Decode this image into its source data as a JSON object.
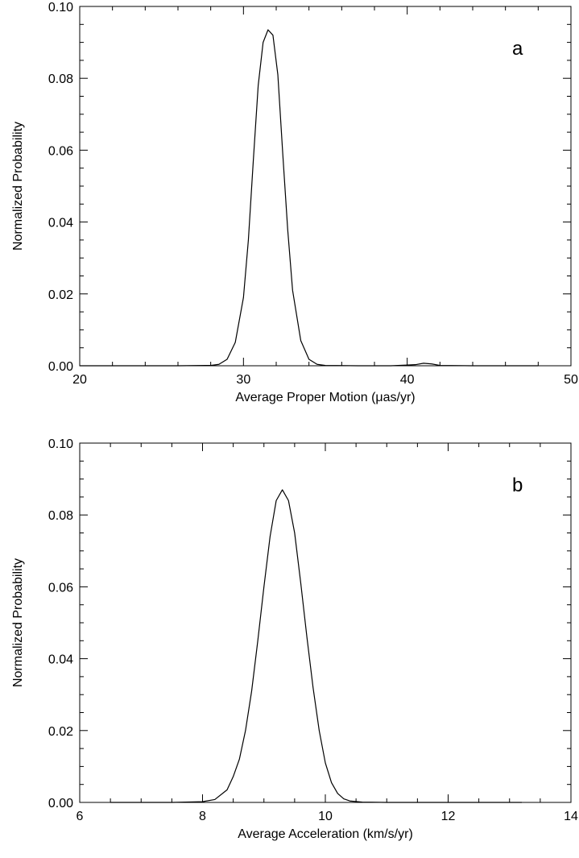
{
  "chart_data": [
    {
      "type": "line",
      "panel_label": "a",
      "xlabel": "Average Proper Motion (μas/yr)",
      "ylabel": "Normalized Probability",
      "xlim": [
        20,
        50
      ],
      "ylim": [
        0,
        0.1
      ],
      "xticks": [
        "20",
        "30",
        "40",
        "50"
      ],
      "yticks": [
        "0.00",
        "0.02",
        "0.04",
        "0.06",
        "0.08",
        "0.10"
      ],
      "grid": false,
      "series": [
        {
          "x": [
            20,
            26,
            28,
            28.5,
            29,
            29.5,
            30,
            30.3,
            30.6,
            30.9,
            31.2,
            31.5,
            31.8,
            32.1,
            32.4,
            32.7,
            33,
            33.5,
            34,
            34.5,
            35,
            37,
            39,
            40.5,
            41,
            41.5,
            42,
            44,
            46,
            48
          ],
          "y": [
            0,
            0,
            0.0001,
            0.0004,
            0.0018,
            0.0065,
            0.019,
            0.035,
            0.057,
            0.078,
            0.09,
            0.0935,
            0.092,
            0.081,
            0.059,
            0.038,
            0.021,
            0.007,
            0.0018,
            0.0004,
            0.0001,
            0,
            0,
            0.0003,
            0.0007,
            0.0005,
            0.0001,
            0,
            0,
            0
          ]
        }
      ]
    },
    {
      "type": "line",
      "panel_label": "b",
      "xlabel": "Average Acceleration (km/s/yr)",
      "ylabel": "Normalized Probability",
      "xlim": [
        6,
        14
      ],
      "ylim": [
        0,
        0.1
      ],
      "xticks": [
        "6",
        "8",
        "10",
        "12",
        "14"
      ],
      "yticks": [
        "0.00",
        "0.02",
        "0.04",
        "0.06",
        "0.08",
        "0.10"
      ],
      "grid": false,
      "series": [
        {
          "x": [
            6.5,
            7.5,
            8,
            8.2,
            8.4,
            8.5,
            8.6,
            8.7,
            8.8,
            8.9,
            9.0,
            9.1,
            9.2,
            9.3,
            9.4,
            9.5,
            9.6,
            9.7,
            9.8,
            9.9,
            10.0,
            10.1,
            10.2,
            10.3,
            10.4,
            10.6,
            11,
            12,
            13,
            13.2
          ],
          "y": [
            0,
            0,
            0.0002,
            0.0008,
            0.0035,
            0.0072,
            0.012,
            0.02,
            0.031,
            0.045,
            0.06,
            0.074,
            0.084,
            0.087,
            0.084,
            0.075,
            0.061,
            0.046,
            0.032,
            0.02,
            0.011,
            0.0055,
            0.0025,
            0.001,
            0.0004,
            0.0001,
            0,
            0,
            0,
            0
          ]
        }
      ]
    }
  ]
}
